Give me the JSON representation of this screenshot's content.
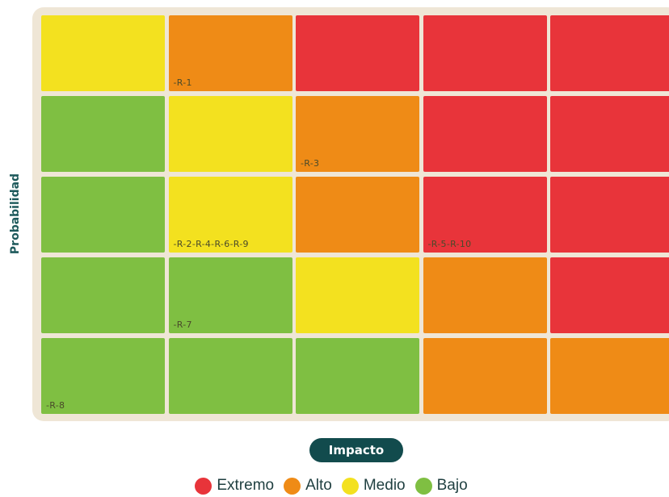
{
  "chart_data": {
    "type": "heatmap",
    "title": "",
    "xlabel": "Impacto",
    "ylabel": "Probabilidad",
    "levels": {
      "extremo": {
        "label": "Extremo",
        "color": "#e8343a"
      },
      "alto": {
        "label": "Alto",
        "color": "#ef8b16"
      },
      "medio": {
        "label": "Medio",
        "color": "#f3e11f"
      },
      "bajo": {
        "label": "Bajo",
        "color": "#7fbf42"
      }
    },
    "rows": [
      {
        "cells": [
          {
            "level": "medio",
            "label": ""
          },
          {
            "level": "alto",
            "label": "-R-1"
          },
          {
            "level": "extremo",
            "label": ""
          },
          {
            "level": "extremo",
            "label": ""
          },
          {
            "level": "extremo",
            "label": ""
          }
        ]
      },
      {
        "cells": [
          {
            "level": "bajo",
            "label": ""
          },
          {
            "level": "medio",
            "label": ""
          },
          {
            "level": "alto",
            "label": "-R-3"
          },
          {
            "level": "extremo",
            "label": ""
          },
          {
            "level": "extremo",
            "label": ""
          }
        ]
      },
      {
        "cells": [
          {
            "level": "bajo",
            "label": ""
          },
          {
            "level": "medio",
            "label": "-R-2-R-4-R-6-R-9"
          },
          {
            "level": "alto",
            "label": ""
          },
          {
            "level": "extremo",
            "label": "-R-5-R-10"
          },
          {
            "level": "extremo",
            "label": ""
          }
        ]
      },
      {
        "cells": [
          {
            "level": "bajo",
            "label": ""
          },
          {
            "level": "bajo",
            "label": "-R-7"
          },
          {
            "level": "medio",
            "label": ""
          },
          {
            "level": "alto",
            "label": ""
          },
          {
            "level": "extremo",
            "label": ""
          }
        ]
      },
      {
        "cells": [
          {
            "level": "bajo",
            "label": "-R-8"
          },
          {
            "level": "bajo",
            "label": ""
          },
          {
            "level": "bajo",
            "label": ""
          },
          {
            "level": "alto",
            "label": ""
          },
          {
            "level": "alto",
            "label": ""
          }
        ]
      }
    ],
    "legend": [
      {
        "label": "Extremo",
        "color": "#e8343a"
      },
      {
        "label": "Alto",
        "color": "#ef8b16"
      },
      {
        "label": "Medio",
        "color": "#f3e11f"
      },
      {
        "label": "Bajo",
        "color": "#7fbf42"
      }
    ],
    "legend_position": "bottom"
  }
}
